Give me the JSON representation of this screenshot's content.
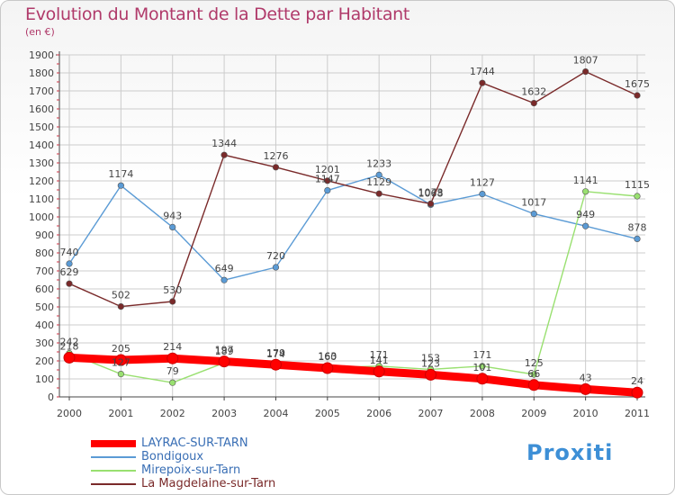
{
  "title": "Evolution du Montant de la Dette par Habitant",
  "subtitle": "(en €)",
  "logo_text": "Proxiti",
  "colors": {
    "title": "#b03a6a",
    "axis": "#444444",
    "grid": "#cccccc"
  },
  "chart_data": {
    "type": "line",
    "x": [
      2000,
      2001,
      2002,
      2003,
      2004,
      2005,
      2006,
      2007,
      2008,
      2009,
      2010,
      2011
    ],
    "ylim": [
      0,
      1900
    ],
    "yticks": [
      0,
      100,
      200,
      300,
      400,
      500,
      600,
      700,
      800,
      900,
      1000,
      1100,
      1200,
      1300,
      1400,
      1500,
      1600,
      1700,
      1800,
      1900
    ],
    "grid": true,
    "legend_position": "bottom-left",
    "series": [
      {
        "name": "LAYRAC-SUR-TARN",
        "color": "#ff0000",
        "values": [
          218,
          205,
          214,
          197,
          179,
          160,
          141,
          123,
          101,
          66,
          43,
          24
        ]
      },
      {
        "name": "Bondigoux",
        "color": "#5b9bd5",
        "values": [
          740,
          1174,
          943,
          649,
          720,
          1147,
          1233,
          1068,
          1127,
          1017,
          949,
          878
        ]
      },
      {
        "name": "Mirepoix-sur-Tarn",
        "color": "#99e070",
        "values": [
          242,
          127,
          79,
          189,
          174,
          163,
          171,
          153,
          171,
          125,
          1141,
          1115
        ]
      },
      {
        "name": "La Magdelaine-sur-Tarn",
        "color": "#7a2a2a",
        "values": [
          629,
          502,
          530,
          1344,
          1276,
          1201,
          1129,
          1073,
          1744,
          1632,
          1807,
          1675
        ]
      }
    ]
  }
}
